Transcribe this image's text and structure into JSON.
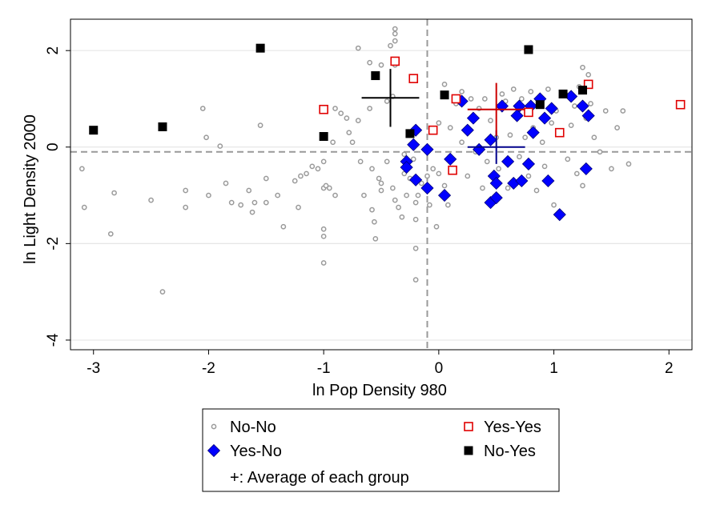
{
  "chart_data": {
    "type": "scatter",
    "xlabel": "ln Pop Density 980",
    "ylabel": "ln Light Density 2000",
    "xlim": [
      -3.2,
      2.2
    ],
    "ylim": [
      -4.2,
      2.65
    ],
    "xticks": [
      -3,
      -2,
      -1,
      0,
      1,
      2
    ],
    "yticks": [
      -4,
      -2,
      0,
      2
    ],
    "grid": "horizontal",
    "reference_lines": {
      "x": -0.1,
      "y": -0.1
    },
    "legend_note": "+: Average of each group",
    "series": [
      {
        "name": "No-No",
        "marker": "hollow-circle",
        "color": "#9a9a9a",
        "points": [
          [
            -3.1,
            -0.45
          ],
          [
            -3.08,
            -1.25
          ],
          [
            -2.82,
            -0.95
          ],
          [
            -2.85,
            -1.8
          ],
          [
            -2.5,
            -1.1
          ],
          [
            -2.4,
            -3.0
          ],
          [
            -2.2,
            -0.9
          ],
          [
            -2.2,
            -1.25
          ],
          [
            -2.05,
            0.8
          ],
          [
            -2.02,
            0.2
          ],
          [
            -2.0,
            -1.0
          ],
          [
            -1.9,
            0.02
          ],
          [
            -1.85,
            -0.75
          ],
          [
            -1.8,
            -1.15
          ],
          [
            -1.72,
            -1.2
          ],
          [
            -1.65,
            -0.9
          ],
          [
            -1.62,
            -1.35
          ],
          [
            -1.6,
            -1.15
          ],
          [
            -1.55,
            0.45
          ],
          [
            -1.5,
            -0.65
          ],
          [
            -1.5,
            -1.15
          ],
          [
            -1.4,
            -1.0
          ],
          [
            -1.35,
            -1.65
          ],
          [
            -1.25,
            -0.7
          ],
          [
            -1.22,
            -1.25
          ],
          [
            -1.2,
            -0.6
          ],
          [
            -1.15,
            -0.55
          ],
          [
            -1.1,
            -0.4
          ],
          [
            -1.05,
            -0.45
          ],
          [
            -1.0,
            0.2
          ],
          [
            -1.0,
            -0.3
          ],
          [
            -1.0,
            -0.85
          ],
          [
            -1.0,
            -1.7
          ],
          [
            -1.0,
            -1.85
          ],
          [
            -1.0,
            -2.4
          ],
          [
            -0.98,
            -0.8
          ],
          [
            -0.95,
            -0.85
          ],
          [
            -0.92,
            0.1
          ],
          [
            -0.9,
            -1.0
          ],
          [
            -0.9,
            0.8
          ],
          [
            -0.85,
            0.7
          ],
          [
            -0.8,
            0.6
          ],
          [
            -0.78,
            0.3
          ],
          [
            -0.75,
            0.1
          ],
          [
            -0.7,
            0.55
          ],
          [
            -0.68,
            -0.3
          ],
          [
            -0.65,
            -1.0
          ],
          [
            -0.6,
            0.8
          ],
          [
            -0.58,
            -0.45
          ],
          [
            -0.58,
            -1.3
          ],
          [
            -0.56,
            -1.55
          ],
          [
            -0.55,
            -1.9
          ],
          [
            -0.52,
            -0.65
          ],
          [
            -0.5,
            -0.75
          ],
          [
            -0.5,
            -0.9
          ],
          [
            -0.45,
            -0.3
          ],
          [
            -0.4,
            -0.85
          ],
          [
            -0.38,
            -1.1
          ],
          [
            -0.35,
            -1.25
          ],
          [
            -0.32,
            -1.45
          ],
          [
            -0.3,
            -0.15
          ],
          [
            -0.3,
            -0.55
          ],
          [
            -0.28,
            -1.0
          ],
          [
            -0.25,
            -0.65
          ],
          [
            -0.22,
            -0.25
          ],
          [
            -0.2,
            -1.15
          ],
          [
            -0.2,
            -1.5
          ],
          [
            -0.2,
            -2.1
          ],
          [
            -0.2,
            -2.75
          ],
          [
            -0.18,
            -1.0
          ],
          [
            -0.15,
            -0.75
          ],
          [
            -0.1,
            -0.6
          ],
          [
            -0.08,
            -1.2
          ],
          [
            -0.05,
            -0.45
          ],
          [
            -0.02,
            -1.65
          ],
          [
            0.0,
            0.5
          ],
          [
            0.0,
            -0.55
          ],
          [
            0.05,
            1.3
          ],
          [
            0.05,
            -0.8
          ],
          [
            0.08,
            -1.2
          ],
          [
            0.1,
            0.4
          ],
          [
            0.15,
            0.9
          ],
          [
            0.2,
            1.15
          ],
          [
            0.2,
            0.1
          ],
          [
            0.25,
            -0.6
          ],
          [
            0.28,
            1.0
          ],
          [
            0.3,
            0.6
          ],
          [
            0.32,
            -0.1
          ],
          [
            0.35,
            0.8
          ],
          [
            0.38,
            -0.85
          ],
          [
            0.4,
            1.0
          ],
          [
            0.42,
            -0.3
          ],
          [
            0.45,
            0.55
          ],
          [
            0.5,
            0.2
          ],
          [
            0.52,
            -0.45
          ],
          [
            0.55,
            1.1
          ],
          [
            0.58,
            0.95
          ],
          [
            0.6,
            -0.85
          ],
          [
            0.62,
            0.25
          ],
          [
            0.65,
            1.2
          ],
          [
            0.68,
            0.6
          ],
          [
            0.7,
            -0.2
          ],
          [
            0.72,
            1.0
          ],
          [
            0.75,
            0.2
          ],
          [
            0.78,
            -0.6
          ],
          [
            0.8,
            1.15
          ],
          [
            0.82,
            0.4
          ],
          [
            0.85,
            -0.9
          ],
          [
            0.88,
            0.85
          ],
          [
            0.9,
            0.1
          ],
          [
            0.92,
            -0.4
          ],
          [
            0.95,
            1.2
          ],
          [
            0.98,
            0.5
          ],
          [
            1.0,
            -1.2
          ],
          [
            1.02,
            0.75
          ],
          [
            1.05,
            0.3
          ],
          [
            1.1,
            1.1
          ],
          [
            1.12,
            -0.25
          ],
          [
            1.15,
            0.45
          ],
          [
            1.18,
            0.85
          ],
          [
            1.2,
            -0.55
          ],
          [
            1.22,
            1.25
          ],
          [
            1.25,
            -0.8
          ],
          [
            1.28,
            0.6
          ],
          [
            1.3,
            1.5
          ],
          [
            1.32,
            0.9
          ],
          [
            1.35,
            0.2
          ],
          [
            1.4,
            -0.1
          ],
          [
            1.45,
            0.75
          ],
          [
            1.5,
            -0.45
          ],
          [
            1.55,
            0.4
          ],
          [
            1.6,
            0.75
          ],
          [
            1.65,
            -0.35
          ],
          [
            1.25,
            1.65
          ],
          [
            -0.6,
            1.75
          ],
          [
            -0.5,
            1.7
          ],
          [
            -0.45,
            0.95
          ],
          [
            -0.4,
            1.05
          ],
          [
            -0.38,
            1.7
          ],
          [
            -0.42,
            2.1
          ],
          [
            -0.38,
            2.2
          ],
          [
            -0.38,
            2.35
          ],
          [
            -0.38,
            2.45
          ],
          [
            -0.7,
            2.05
          ]
        ]
      },
      {
        "name": "Yes-No",
        "marker": "filled-diamond",
        "color": "#0000ff",
        "points": [
          [
            -0.2,
            0.35
          ],
          [
            -0.22,
            0.05
          ],
          [
            -0.28,
            -0.3
          ],
          [
            -0.28,
            -0.42
          ],
          [
            -0.2,
            -0.68
          ],
          [
            -0.1,
            -0.05
          ],
          [
            -0.1,
            -0.85
          ],
          [
            0.05,
            -1.0
          ],
          [
            0.1,
            -0.25
          ],
          [
            0.2,
            0.95
          ],
          [
            0.25,
            0.35
          ],
          [
            0.3,
            0.6
          ],
          [
            0.35,
            -0.05
          ],
          [
            0.45,
            0.15
          ],
          [
            0.45,
            -1.15
          ],
          [
            0.48,
            -0.6
          ],
          [
            0.5,
            -1.05
          ],
          [
            0.5,
            -0.75
          ],
          [
            0.55,
            0.85
          ],
          [
            0.6,
            -0.3
          ],
          [
            0.65,
            -0.75
          ],
          [
            0.68,
            0.65
          ],
          [
            0.7,
            0.85
          ],
          [
            0.72,
            -0.7
          ],
          [
            0.78,
            -0.35
          ],
          [
            0.8,
            0.85
          ],
          [
            0.82,
            0.3
          ],
          [
            0.88,
            1.0
          ],
          [
            0.92,
            0.6
          ],
          [
            0.95,
            -0.7
          ],
          [
            0.98,
            0.8
          ],
          [
            1.05,
            -1.4
          ],
          [
            1.15,
            1.05
          ],
          [
            1.25,
            0.85
          ],
          [
            1.28,
            -0.45
          ],
          [
            1.3,
            0.65
          ]
        ]
      },
      {
        "name": "Yes-Yes",
        "marker": "hollow-square",
        "color": "#e00000",
        "points": [
          [
            -1.0,
            0.78
          ],
          [
            -0.38,
            1.78
          ],
          [
            -0.22,
            1.42
          ],
          [
            -0.05,
            0.35
          ],
          [
            0.12,
            -0.48
          ],
          [
            0.15,
            1.0
          ],
          [
            0.78,
            0.72
          ],
          [
            1.05,
            0.3
          ],
          [
            1.3,
            1.3
          ],
          [
            2.1,
            0.88
          ]
        ]
      },
      {
        "name": "No-Yes",
        "marker": "filled-square",
        "color": "#000000",
        "points": [
          [
            -3.0,
            0.35
          ],
          [
            -2.4,
            0.42
          ],
          [
            -1.55,
            2.05
          ],
          [
            -1.0,
            0.22
          ],
          [
            -0.55,
            1.48
          ],
          [
            -0.25,
            0.28
          ],
          [
            0.05,
            1.08
          ],
          [
            0.78,
            2.02
          ],
          [
            0.88,
            0.88
          ],
          [
            1.08,
            1.1
          ],
          [
            1.25,
            1.18
          ]
        ]
      }
    ],
    "group_averages": [
      {
        "name": "No-No",
        "color": "#000000",
        "x": -0.42,
        "y": 1.02,
        "x_err": 0.25,
        "y_err": 0.6
      },
      {
        "name": "Yes-No",
        "color": "#00008b",
        "x": 0.5,
        "y": 0.0,
        "x_err": 0.25,
        "y_err": 0.35
      },
      {
        "name": "Yes-Yes",
        "color": "#cc0000",
        "x": 0.5,
        "y": 0.78,
        "x_err": 0.25,
        "y_err": 0.55
      },
      {
        "name": "No-Yes",
        "color": "#000000",
        "x": -0.42,
        "y": 1.02,
        "x_err": 0.0,
        "y_err": 0.0
      }
    ]
  }
}
